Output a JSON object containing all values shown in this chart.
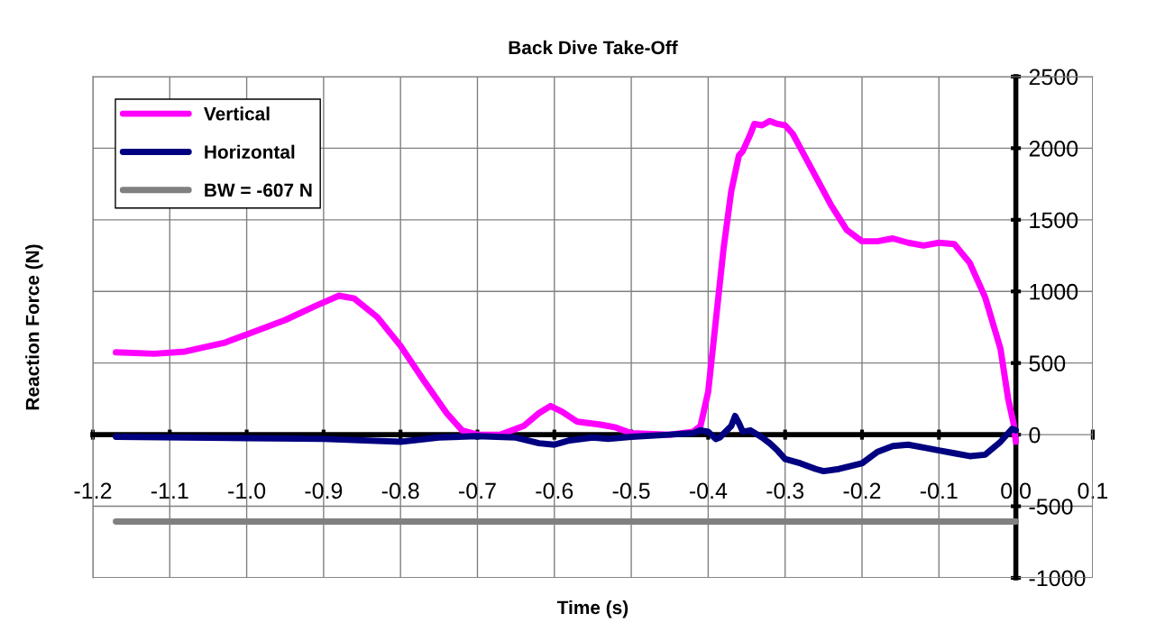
{
  "chart_data": {
    "type": "line",
    "title": "Back Dive Take-Off",
    "xlabel": "Time (s)",
    "ylabel": "Reaction Force (N)",
    "xlim": [
      -1.2,
      0.1
    ],
    "xticks": [
      {
        "value": -1.2,
        "label": "-1.2"
      },
      {
        "value": -1.1,
        "label": "-1.1"
      },
      {
        "value": -1.0,
        "label": "-1.0"
      },
      {
        "value": -0.9,
        "label": "-0.9"
      },
      {
        "value": -0.8,
        "label": "-0.8"
      },
      {
        "value": -0.7,
        "label": "-0.7"
      },
      {
        "value": -0.6,
        "label": "-0.6"
      },
      {
        "value": -0.5,
        "label": "-0.5"
      },
      {
        "value": -0.4,
        "label": "-0.4"
      },
      {
        "value": -0.3,
        "label": "-0.3"
      },
      {
        "value": -0.2,
        "label": "-0.2"
      },
      {
        "value": -0.1,
        "label": "-0.1"
      },
      {
        "value": 0.0,
        "label": "0.0"
      },
      {
        "value": 0.1,
        "label": "0.1"
      }
    ],
    "ylim": [
      -1000,
      2500
    ],
    "yticks": [
      -1000,
      -500,
      0,
      500,
      1000,
      1500,
      2000,
      2500
    ],
    "grid": true,
    "legend": "top left",
    "line_style": "solid",
    "marker": "none",
    "series": [
      {
        "name": "Vertical",
        "color": "#ff00ff",
        "x": [
          -1.17,
          -1.12,
          -1.08,
          -1.03,
          -1.0,
          -0.95,
          -0.91,
          -0.88,
          -0.86,
          -0.83,
          -0.8,
          -0.77,
          -0.74,
          -0.72,
          -0.7,
          -0.67,
          -0.64,
          -0.62,
          -0.605,
          -0.59,
          -0.57,
          -0.54,
          -0.52,
          -0.5,
          -0.45,
          -0.42,
          -0.41,
          -0.4,
          -0.39,
          -0.38,
          -0.37,
          -0.36,
          -0.355,
          -0.345,
          -0.34,
          -0.33,
          -0.32,
          -0.31,
          -0.3,
          -0.29,
          -0.28,
          -0.26,
          -0.24,
          -0.22,
          -0.2,
          -0.18,
          -0.16,
          -0.14,
          -0.12,
          -0.1,
          -0.08,
          -0.06,
          -0.04,
          -0.02,
          -0.01,
          -0.003,
          0.0
        ],
        "values": [
          575,
          565,
          580,
          640,
          700,
          800,
          900,
          970,
          950,
          820,
          620,
          380,
          150,
          30,
          0,
          0,
          60,
          150,
          200,
          160,
          90,
          70,
          50,
          10,
          0,
          20,
          60,
          300,
          800,
          1300,
          1700,
          1950,
          1980,
          2100,
          2170,
          2160,
          2190,
          2170,
          2160,
          2100,
          2000,
          1800,
          1600,
          1430,
          1350,
          1350,
          1370,
          1340,
          1320,
          1340,
          1330,
          1200,
          960,
          600,
          250,
          80,
          -50
        ]
      },
      {
        "name": "Horizontal",
        "color": "#000080",
        "x": [
          -1.17,
          -1.0,
          -0.9,
          -0.8,
          -0.75,
          -0.7,
          -0.65,
          -0.62,
          -0.6,
          -0.58,
          -0.55,
          -0.53,
          -0.5,
          -0.45,
          -0.42,
          -0.41,
          -0.4,
          -0.39,
          -0.385,
          -0.37,
          -0.365,
          -0.36,
          -0.355,
          -0.345,
          -0.33,
          -0.32,
          -0.31,
          -0.3,
          -0.28,
          -0.26,
          -0.25,
          -0.23,
          -0.2,
          -0.18,
          -0.16,
          -0.14,
          -0.12,
          -0.1,
          -0.08,
          -0.06,
          -0.04,
          -0.02,
          -0.005,
          0.0
        ],
        "values": [
          -15,
          -25,
          -30,
          -50,
          -20,
          -10,
          -20,
          -60,
          -70,
          -40,
          -20,
          -30,
          -15,
          0,
          10,
          30,
          20,
          -30,
          -20,
          60,
          130,
          80,
          20,
          30,
          -20,
          -60,
          -110,
          -170,
          -200,
          -240,
          -255,
          -240,
          -200,
          -120,
          -80,
          -70,
          -90,
          -110,
          -130,
          -150,
          -140,
          -50,
          40,
          30
        ]
      },
      {
        "name": "BW = -607 N",
        "color": "#808080",
        "x": [
          -1.17,
          0.0
        ],
        "values": [
          -607,
          -607
        ]
      }
    ]
  }
}
